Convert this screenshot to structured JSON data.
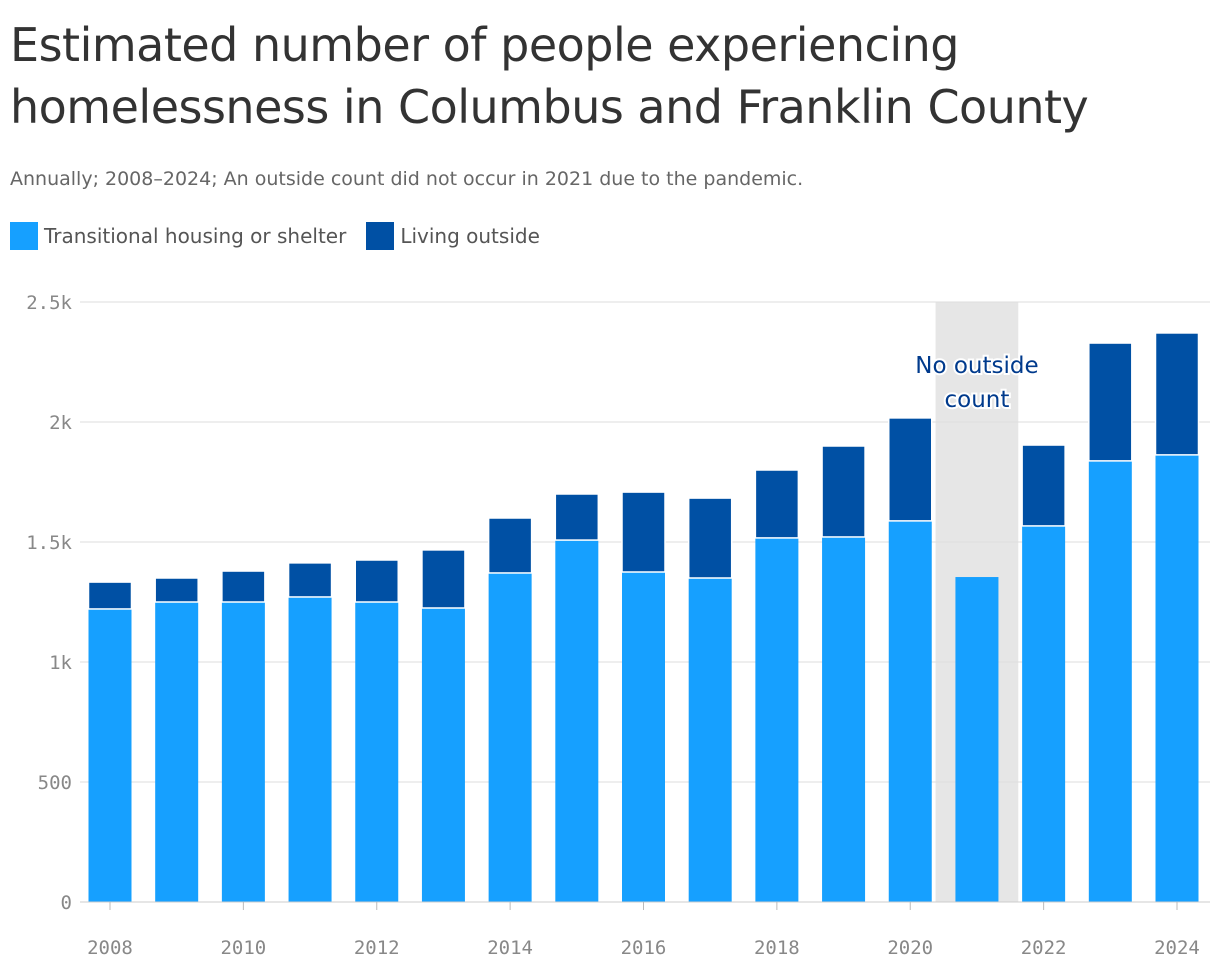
{
  "chart_data": {
    "type": "bar",
    "stacked": true,
    "title": "Estimated number of people experiencing homelessness in Columbus and Franklin County",
    "subtitle": "Annually; 2008–2024; An outside count did not occur in 2021 due to the pandemic.",
    "categories": [
      2008,
      2009,
      2010,
      2011,
      2012,
      2013,
      2014,
      2015,
      2016,
      2017,
      2018,
      2019,
      2020,
      2021,
      2022,
      2023,
      2024
    ],
    "series": [
      {
        "name": "Transitional housing or shelter",
        "color": "#16a0ff",
        "values": [
          1221,
          1250,
          1250,
          1271,
          1250,
          1225,
          1371,
          1508,
          1375,
          1350,
          1517,
          1521,
          1588,
          1354,
          1567,
          1838,
          1863
        ]
      },
      {
        "name": "Living outside",
        "color": "#0050a4",
        "values": [
          112,
          100,
          129,
          142,
          175,
          242,
          229,
          192,
          333,
          333,
          283,
          379,
          429,
          null,
          337,
          491,
          508
        ]
      }
    ],
    "ylim": [
      0,
      2500
    ],
    "yticks": [
      {
        "v": 0,
        "label": "0"
      },
      {
        "v": 500,
        "label": "500"
      },
      {
        "v": 1000,
        "label": "1k"
      },
      {
        "v": 1500,
        "label": "1.5k"
      },
      {
        "v": 2000,
        "label": "2k"
      },
      {
        "v": 2500,
        "label": "2.5k"
      }
    ],
    "xticks": [
      "2008",
      "2010",
      "2012",
      "2014",
      "2016",
      "2018",
      "2020",
      "2022",
      "2024"
    ],
    "grid": true,
    "legend_position": "top-left",
    "annotation": {
      "category": 2021,
      "lines": [
        "No outside",
        "count"
      ],
      "shade_color": "#e6e6e6",
      "text_color": "#003a8c"
    }
  }
}
